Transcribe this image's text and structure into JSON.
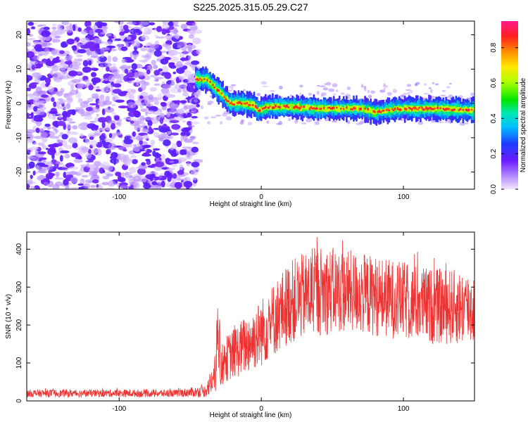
{
  "chart_data": [
    {
      "type": "heatmap",
      "title": "S225.2025.315.05.29.C27",
      "xlabel": "Height of straight line (km)",
      "ylabel": "Frequency (Hz)",
      "xlim": [
        -165,
        150
      ],
      "ylim": [
        -25,
        24
      ],
      "xticks": [
        -100,
        0,
        100
      ],
      "xtick_labels": [
        "-100",
        "0",
        "100"
      ],
      "yticks": [
        -20,
        -10,
        0,
        10,
        20
      ],
      "ytick_labels": [
        "-20",
        "-10",
        "0",
        "10",
        "20"
      ],
      "colorbar": {
        "label": "Normalized spectral amplitude",
        "range": [
          0.0,
          0.95
        ],
        "ticks": [
          0.0,
          0.2,
          0.4,
          0.6,
          0.8
        ],
        "tick_labels": [
          "0.0",
          "0.2",
          "0.4",
          "0.6",
          "0.8"
        ]
      },
      "noise_region_x": [
        -165,
        -52
      ],
      "ridge": [
        {
          "x": -45,
          "y": 7
        },
        {
          "x": -38,
          "y": 7
        },
        {
          "x": -32,
          "y": 4.5
        },
        {
          "x": -28,
          "y": 3
        },
        {
          "x": -22,
          "y": 0
        },
        {
          "x": -12,
          "y": 0
        },
        {
          "x": -5,
          "y": -0.5
        },
        {
          "x": -2,
          "y": -2
        },
        {
          "x": 5,
          "y": -1
        },
        {
          "x": 20,
          "y": -1
        },
        {
          "x": 40,
          "y": -1.5
        },
        {
          "x": 70,
          "y": -1.5
        },
        {
          "x": 80,
          "y": -2.5
        },
        {
          "x": 90,
          "y": -2
        },
        {
          "x": 100,
          "y": -1.5
        },
        {
          "x": 120,
          "y": -1.5
        },
        {
          "x": 150,
          "y": -2
        }
      ]
    },
    {
      "type": "line",
      "xlabel": "Height of straight line (km)",
      "ylabel": "SNR (10 * v/v)",
      "xlim": [
        -165,
        150
      ],
      "ylim": [
        0,
        445
      ],
      "xticks": [
        -100,
        0,
        100
      ],
      "xtick_labels": [
        "-100",
        "0",
        "100"
      ],
      "yticks": [
        0,
        100,
        200,
        300,
        400
      ],
      "ytick_labels": [
        "0",
        "100",
        "200",
        "300",
        "400"
      ],
      "color": "#ee3333",
      "envelope": [
        {
          "x": -165,
          "base": 20,
          "spread": 10
        },
        {
          "x": -60,
          "base": 20,
          "spread": 10
        },
        {
          "x": -40,
          "base": 25,
          "spread": 15
        },
        {
          "x": -33,
          "base": 60,
          "spread": 45
        },
        {
          "x": -25,
          "base": 110,
          "spread": 60
        },
        {
          "x": -10,
          "base": 150,
          "spread": 80
        },
        {
          "x": 0,
          "base": 180,
          "spread": 90
        },
        {
          "x": 10,
          "base": 220,
          "spread": 100
        },
        {
          "x": 20,
          "base": 260,
          "spread": 110
        },
        {
          "x": 40,
          "base": 290,
          "spread": 120
        },
        {
          "x": 60,
          "base": 290,
          "spread": 110
        },
        {
          "x": 90,
          "base": 270,
          "spread": 105
        },
        {
          "x": 120,
          "base": 250,
          "spread": 100
        },
        {
          "x": 150,
          "base": 245,
          "spread": 100
        }
      ]
    }
  ]
}
